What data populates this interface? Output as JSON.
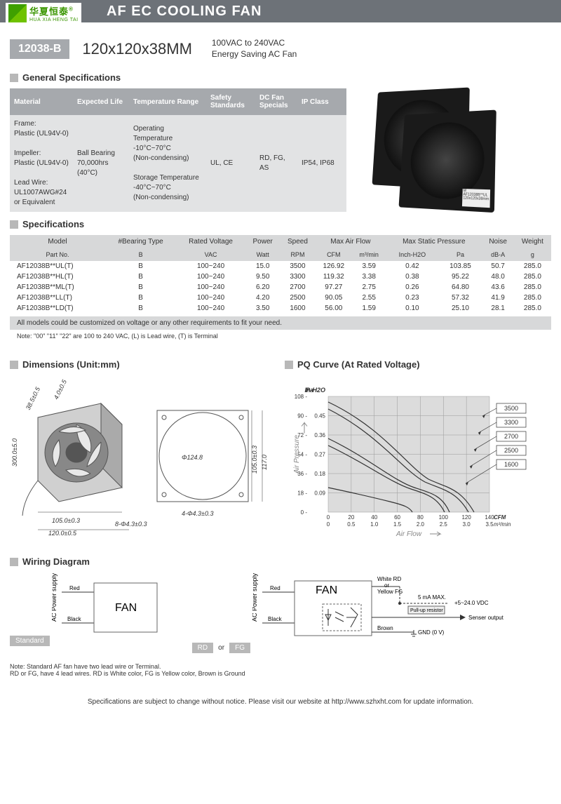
{
  "logo": {
    "cn": "华夏恒泰",
    "en": "HUA XIA HENG TAI",
    "reg": "®"
  },
  "header_title": "AF EC COOLING FAN",
  "model_badge": "12038-B",
  "dimensions": "120x120x38MM",
  "voltage_line1": "100VAC to 240VAC",
  "voltage_line2": "Energy Saving AC Fan",
  "sections": {
    "general": "General Specifications",
    "specs": "Specifications",
    "dims": "Dimensions (Unit:mm)",
    "pq": "PQ Curve (At Rated Voltage)",
    "wiring": "Wiring Diagram"
  },
  "gen_spec": {
    "headers": [
      "Material",
      "Expected Life",
      "Temperature Range",
      "Safety Standards",
      "DC Fan Specials",
      "IP Class"
    ],
    "material": "Frame:\nPlastic (UL94V-0)\n\nImpeller:\nPlastic (UL94V-0)\n\nLead Wire:\nUL1007AWG#24 or Equivalent",
    "life": "Ball Bearing\n70,000hrs (40°C)",
    "temp": "Operating Temperature\n-10°C~70°C\n(Non-condensing)\n\nStorage Temperature\n-40°C~70°C\n(Non-condensing)",
    "safety": "UL, CE",
    "dcspec": "RD, FG, AS",
    "ip": "IP54, IP68"
  },
  "spec_headers_top": [
    "Model",
    "#Bearing Type",
    "Rated Voltage",
    "Power",
    "Speed",
    "Max  Air  Flow",
    "Max Static  Pressure",
    "Noise",
    "Weight"
  ],
  "spec_headers_sub": [
    "Part No.",
    "B",
    "VAC",
    "Watt",
    "RPM",
    "CFM",
    "m³/min",
    "Inch-H2O",
    "Pa",
    "dB-A",
    "g"
  ],
  "spec_rows": [
    [
      "AF12038B**UL(T)",
      "B",
      "100~240",
      "15.0",
      "3500",
      "126.92",
      "3.59",
      "0.42",
      "103.85",
      "50.7",
      "285.0"
    ],
    [
      "AF12038B**HL(T)",
      "B",
      "100~240",
      "9.50",
      "3300",
      "119.32",
      "3.38",
      "0.38",
      "95.22",
      "48.0",
      "285.0"
    ],
    [
      "AF12038B**ML(T)",
      "B",
      "100~240",
      "6.20",
      "2700",
      "97.27",
      "2.75",
      "0.26",
      "64.80",
      "43.6",
      "285.0"
    ],
    [
      "AF12038B**LL(T)",
      "B",
      "100~240",
      "4.20",
      "2500",
      "90.05",
      "2.55",
      "0.23",
      "57.32",
      "41.9",
      "285.0"
    ],
    [
      "AF12038B**LD(T)",
      "B",
      "100~240",
      "3.50",
      "1600",
      "56.00",
      "1.59",
      "0.10",
      "25.10",
      "28.1",
      "285.0"
    ]
  ],
  "custom_note": "All models could be customized on voltage or any other requirements to fit your need.",
  "spec_footnote": "Note: \"00\"  \"11\"  \"22\" are 100 to 240 VAC,  (L) is Lead wire, (T) is Terminal",
  "dim_labels": {
    "d1": "38.5±0.5",
    "d2": "4.0±0.5",
    "d3": "300.0±5.0",
    "d4": "105.0±0.3",
    "d5": "120.0±0.5",
    "d6": "8-Φ4.3±0.3",
    "d7": "Φ124.8",
    "d8": "105.0±0.3",
    "d9": "117.0",
    "d10": "4-Φ4.3±0.3"
  },
  "pq_chart": {
    "y_pa": [
      0,
      18,
      36,
      54,
      72,
      90,
      108
    ],
    "y_inh2o": [
      "",
      "0.09",
      "0.18",
      "0.27",
      "0.36",
      "0.45"
    ],
    "x_cfm": [
      0,
      20,
      40,
      60,
      80,
      100,
      120,
      140
    ],
    "x_m3": [
      "0",
      "0.5",
      "1.0",
      "1.5",
      "2.0",
      "2.5",
      "3.0",
      "3.5"
    ],
    "y_label_pa": "Pa",
    "y_label_in": "In-H2O",
    "y_axis": "Air Pressure",
    "x_axis": "Air Flow",
    "x_unit_cfm": "CFM",
    "x_unit_m3": "m³/min",
    "series": [
      "3500",
      "3300",
      "2700",
      "2500",
      "1600"
    ],
    "bg": "#dcdcdc",
    "grid": "#999",
    "line": "#333"
  },
  "wiring": {
    "std_label": "Standard",
    "rd_label": "RD",
    "or_label": "or",
    "fg_label": "FG",
    "fan": "FAN",
    "ac": "AC Power supply",
    "red": "Red",
    "black": "Black",
    "white_rd": "White  RD",
    "or2": "or",
    "yellow_fg": "Yellow FG",
    "ma": "5 mA MAX.",
    "vdc": "+5~24.0 VDC",
    "pullup": "Pull-up resistor",
    "sensor": "Senser output",
    "brown": "Brown",
    "gnd": "GND (0 V)",
    "note": "Note: Standard AF fan have two lead wire or Terminal.\n          RD or FG, have 4 lead wires. RD is White color, FG is Yellow color, Brown is Ground"
  },
  "bottom": "Specifications are subject to change without notice. Please visit our website at http://www.szhxht.com for update information."
}
